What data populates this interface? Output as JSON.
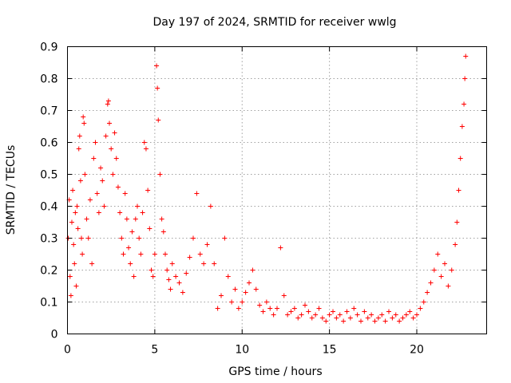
{
  "chart_data": {
    "type": "scatter",
    "title": "Day 197 of 2024, SRMTID for receiver wwlg",
    "xlabel": "GPS time / hours",
    "ylabel": "SRMTID / TECUs",
    "xlim": [
      0,
      24
    ],
    "ylim": [
      0,
      0.9
    ],
    "xticks": [
      0,
      5,
      10,
      15,
      20
    ],
    "yticks": [
      0,
      0.1,
      0.2,
      0.3,
      0.4,
      0.5,
      0.6,
      0.7,
      0.8,
      0.9
    ],
    "grid": true,
    "marker": "+",
    "color": "#ff0000",
    "series": [
      {
        "name": "SRMTID",
        "points": [
          [
            0.05,
            0.3
          ],
          [
            0.1,
            0.42
          ],
          [
            0.15,
            0.18
          ],
          [
            0.2,
            0.12
          ],
          [
            0.25,
            0.35
          ],
          [
            0.3,
            0.45
          ],
          [
            0.35,
            0.28
          ],
          [
            0.4,
            0.22
          ],
          [
            0.45,
            0.38
          ],
          [
            0.5,
            0.15
          ],
          [
            0.55,
            0.4
          ],
          [
            0.6,
            0.33
          ],
          [
            0.65,
            0.58
          ],
          [
            0.7,
            0.62
          ],
          [
            0.75,
            0.48
          ],
          [
            0.8,
            0.3
          ],
          [
            0.85,
            0.25
          ],
          [
            0.9,
            0.68
          ],
          [
            0.95,
            0.66
          ],
          [
            1.0,
            0.5
          ],
          [
            1.1,
            0.36
          ],
          [
            1.2,
            0.3
          ],
          [
            1.3,
            0.42
          ],
          [
            1.4,
            0.22
          ],
          [
            1.5,
            0.55
          ],
          [
            1.6,
            0.6
          ],
          [
            1.7,
            0.44
          ],
          [
            1.8,
            0.38
          ],
          [
            1.9,
            0.52
          ],
          [
            2.0,
            0.48
          ],
          [
            2.1,
            0.4
          ],
          [
            2.2,
            0.62
          ],
          [
            2.3,
            0.72
          ],
          [
            2.35,
            0.73
          ],
          [
            2.4,
            0.66
          ],
          [
            2.5,
            0.58
          ],
          [
            2.6,
            0.5
          ],
          [
            2.7,
            0.63
          ],
          [
            2.8,
            0.55
          ],
          [
            2.9,
            0.46
          ],
          [
            3.0,
            0.38
          ],
          [
            3.1,
            0.3
          ],
          [
            3.2,
            0.25
          ],
          [
            3.3,
            0.44
          ],
          [
            3.4,
            0.36
          ],
          [
            3.5,
            0.27
          ],
          [
            3.6,
            0.22
          ],
          [
            3.7,
            0.32
          ],
          [
            3.8,
            0.18
          ],
          [
            3.9,
            0.36
          ],
          [
            4.0,
            0.4
          ],
          [
            4.1,
            0.3
          ],
          [
            4.2,
            0.25
          ],
          [
            4.3,
            0.38
          ],
          [
            4.4,
            0.6
          ],
          [
            4.5,
            0.58
          ],
          [
            4.6,
            0.45
          ],
          [
            4.7,
            0.33
          ],
          [
            4.8,
            0.2
          ],
          [
            4.9,
            0.18
          ],
          [
            5.0,
            0.25
          ],
          [
            5.1,
            0.84
          ],
          [
            5.15,
            0.77
          ],
          [
            5.2,
            0.67
          ],
          [
            5.3,
            0.5
          ],
          [
            5.4,
            0.36
          ],
          [
            5.5,
            0.32
          ],
          [
            5.6,
            0.25
          ],
          [
            5.7,
            0.2
          ],
          [
            5.8,
            0.17
          ],
          [
            5.9,
            0.14
          ],
          [
            6.0,
            0.22
          ],
          [
            6.2,
            0.18
          ],
          [
            6.4,
            0.16
          ],
          [
            6.6,
            0.13
          ],
          [
            6.8,
            0.19
          ],
          [
            7.0,
            0.24
          ],
          [
            7.2,
            0.3
          ],
          [
            7.4,
            0.44
          ],
          [
            7.6,
            0.25
          ],
          [
            7.8,
            0.22
          ],
          [
            8.0,
            0.28
          ],
          [
            8.2,
            0.4
          ],
          [
            8.4,
            0.22
          ],
          [
            8.6,
            0.08
          ],
          [
            8.8,
            0.12
          ],
          [
            9.0,
            0.3
          ],
          [
            9.2,
            0.18
          ],
          [
            9.4,
            0.1
          ],
          [
            9.6,
            0.14
          ],
          [
            9.8,
            0.08
          ],
          [
            10.0,
            0.1
          ],
          [
            10.2,
            0.13
          ],
          [
            10.4,
            0.16
          ],
          [
            10.6,
            0.2
          ],
          [
            10.8,
            0.14
          ],
          [
            11.0,
            0.09
          ],
          [
            11.2,
            0.07
          ],
          [
            11.4,
            0.1
          ],
          [
            11.6,
            0.08
          ],
          [
            11.8,
            0.06
          ],
          [
            12.0,
            0.08
          ],
          [
            12.2,
            0.27
          ],
          [
            12.4,
            0.12
          ],
          [
            12.6,
            0.06
          ],
          [
            12.8,
            0.07
          ],
          [
            13.0,
            0.08
          ],
          [
            13.2,
            0.05
          ],
          [
            13.4,
            0.06
          ],
          [
            13.6,
            0.09
          ],
          [
            13.8,
            0.07
          ],
          [
            14.0,
            0.05
          ],
          [
            14.2,
            0.06
          ],
          [
            14.4,
            0.08
          ],
          [
            14.6,
            0.05
          ],
          [
            14.8,
            0.04
          ],
          [
            15.0,
            0.06
          ],
          [
            15.2,
            0.07
          ],
          [
            15.4,
            0.05
          ],
          [
            15.6,
            0.06
          ],
          [
            15.8,
            0.04
          ],
          [
            16.0,
            0.07
          ],
          [
            16.2,
            0.05
          ],
          [
            16.4,
            0.08
          ],
          [
            16.6,
            0.06
          ],
          [
            16.8,
            0.04
          ],
          [
            17.0,
            0.07
          ],
          [
            17.2,
            0.05
          ],
          [
            17.4,
            0.06
          ],
          [
            17.6,
            0.04
          ],
          [
            17.8,
            0.05
          ],
          [
            18.0,
            0.06
          ],
          [
            18.2,
            0.04
          ],
          [
            18.4,
            0.07
          ],
          [
            18.6,
            0.05
          ],
          [
            18.8,
            0.06
          ],
          [
            19.0,
            0.04
          ],
          [
            19.2,
            0.05
          ],
          [
            19.4,
            0.06
          ],
          [
            19.6,
            0.07
          ],
          [
            19.8,
            0.05
          ],
          [
            20.0,
            0.06
          ],
          [
            20.2,
            0.08
          ],
          [
            20.4,
            0.1
          ],
          [
            20.6,
            0.13
          ],
          [
            20.8,
            0.16
          ],
          [
            21.0,
            0.2
          ],
          [
            21.2,
            0.25
          ],
          [
            21.4,
            0.18
          ],
          [
            21.6,
            0.22
          ],
          [
            21.8,
            0.15
          ],
          [
            22.0,
            0.2
          ],
          [
            22.2,
            0.28
          ],
          [
            22.3,
            0.35
          ],
          [
            22.4,
            0.45
          ],
          [
            22.5,
            0.55
          ],
          [
            22.6,
            0.65
          ],
          [
            22.7,
            0.72
          ],
          [
            22.75,
            0.8
          ],
          [
            22.8,
            0.87
          ]
        ]
      }
    ]
  }
}
